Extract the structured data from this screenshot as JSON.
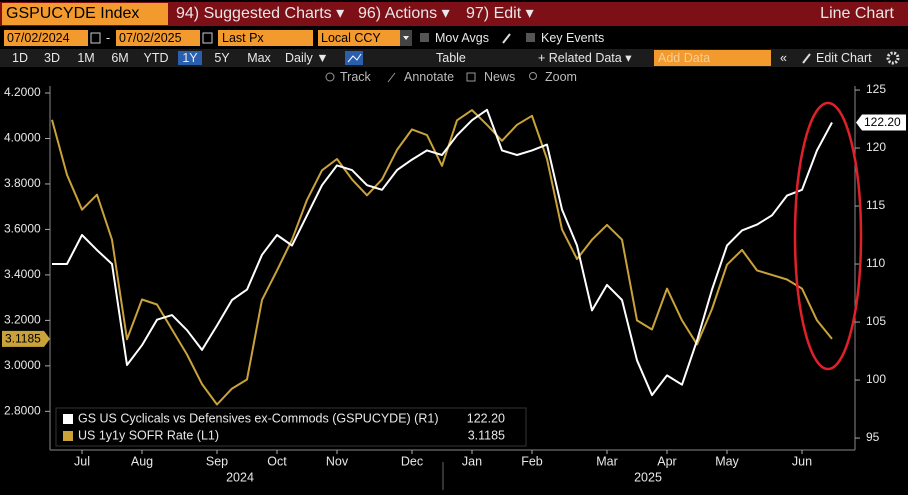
{
  "header": {
    "ticker": "GSPUCYDE Index",
    "menus": [
      "94) Suggested Charts ▾",
      "96) Actions ▾",
      "97) Edit ▾"
    ],
    "view": "Line Chart"
  },
  "controls": {
    "start_date": "07/02/2024",
    "date_separator": "-",
    "end_date": "07/02/2025",
    "field": "Last Px",
    "currency": "Local CCY",
    "options": [
      "Mov Avgs",
      "Key Events"
    ]
  },
  "toolbar": {
    "periods": [
      "1D",
      "3D",
      "1M",
      "6M",
      "YTD",
      "1Y",
      "5Y",
      "Max"
    ],
    "selected_period": "1Y",
    "frequency": "Daily ▼",
    "table": "Table",
    "related": "+ Related Data ▾",
    "add_data": "Add Data",
    "collapse": "«",
    "edit_chart": "Edit Chart"
  },
  "tools": [
    "Track",
    "Annotate",
    "News",
    "Zoom"
  ],
  "chart_data": {
    "type": "line",
    "categories": [
      null,
      null,
      "Jul",
      null,
      null,
      null,
      "Aug",
      null,
      null,
      null,
      null,
      "Sep",
      null,
      null,
      null,
      "Oct",
      null,
      null,
      null,
      "Nov",
      null,
      null,
      null,
      null,
      "Dec",
      null,
      null,
      null,
      "Jan",
      null,
      null,
      null,
      "Feb",
      null,
      null,
      null,
      null,
      "Mar",
      null,
      null,
      null,
      "Apr",
      null,
      null,
      null,
      "May",
      null,
      null,
      null,
      null,
      "Jun",
      null,
      null
    ],
    "year_labels": [
      "2024",
      "2025"
    ],
    "series": [
      {
        "name": "GS US Cyclicals vs Defensives ex-Commods (GSPUCYDE) (R1)",
        "color": "#ffffff",
        "axis": "y2",
        "values": [
          110,
          110,
          112.5,
          111.2,
          110,
          101.3,
          103,
          105.2,
          105.6,
          104.3,
          102.6,
          104.7,
          106.9,
          107.8,
          110.8,
          112.5,
          111.6,
          114.2,
          116.8,
          118.5,
          118.1,
          116.8,
          116.4,
          118.1,
          119,
          119.8,
          119.4,
          121.1,
          122.4,
          123.3,
          119.8,
          119.4,
          119.8,
          120.3,
          114.7,
          111.6,
          106,
          108.2,
          106.9,
          101.7,
          98.7,
          100.4,
          99.6,
          103.4,
          107.8,
          111.6,
          112.9,
          113.4,
          114.2,
          115.9,
          116.4,
          119.8,
          122.2
        ],
        "value_labels": [
          null,
          null,
          null,
          null,
          null,
          null,
          null,
          null,
          null,
          null,
          null,
          null,
          null,
          null,
          null,
          null,
          null,
          null,
          null,
          null,
          null,
          null,
          null,
          null,
          null,
          null,
          null,
          null,
          null,
          null,
          null,
          null,
          null,
          null,
          null,
          null,
          null,
          null,
          null,
          null,
          null,
          null,
          null,
          null,
          null,
          null,
          null,
          null,
          null,
          null,
          null,
          null,
          "122.20"
        ]
      },
      {
        "name": "US 1y1y SOFR Rate (L1)",
        "color": "#c9a23a",
        "axis": "y",
        "values": [
          4.082,
          3.84,
          3.687,
          3.753,
          3.555,
          3.117,
          3.292,
          3.27,
          3.16,
          3.05,
          2.92,
          2.83,
          2.9,
          2.94,
          3.29,
          3.42,
          3.555,
          3.73,
          3.86,
          3.91,
          3.82,
          3.75,
          3.82,
          3.95,
          4.04,
          4.015,
          3.88,
          4.08,
          4.125,
          4.06,
          3.99,
          4.06,
          4.1,
          3.91,
          3.6,
          3.47,
          3.555,
          3.62,
          3.555,
          3.2,
          3.16,
          3.34,
          3.2,
          3.095,
          3.25,
          3.445,
          3.51,
          3.42,
          3.4,
          3.38,
          3.34,
          3.2,
          3.1185
        ]
      }
    ],
    "ylim": [
      2.63,
      4.31
    ],
    "yticks": [
      {
        "value": 2.8,
        "label": "2.8000"
      },
      {
        "value": 3.0,
        "label": "3.0000"
      },
      {
        "value": 3.2,
        "label": "3.2000"
      },
      {
        "value": 3.4,
        "label": "3.4000"
      },
      {
        "value": 3.6,
        "label": "3.6000"
      },
      {
        "value": 3.8,
        "label": "3.8000"
      },
      {
        "value": 4.0,
        "label": "4.0000"
      },
      {
        "value": 4.2,
        "label": "4.2000"
      }
    ],
    "y2lim": [
      93.97,
      126.9
    ],
    "y2ticks": [
      95,
      100,
      105,
      110,
      115,
      120,
      125
    ],
    "grid": false,
    "legend": "lower left"
  }
}
